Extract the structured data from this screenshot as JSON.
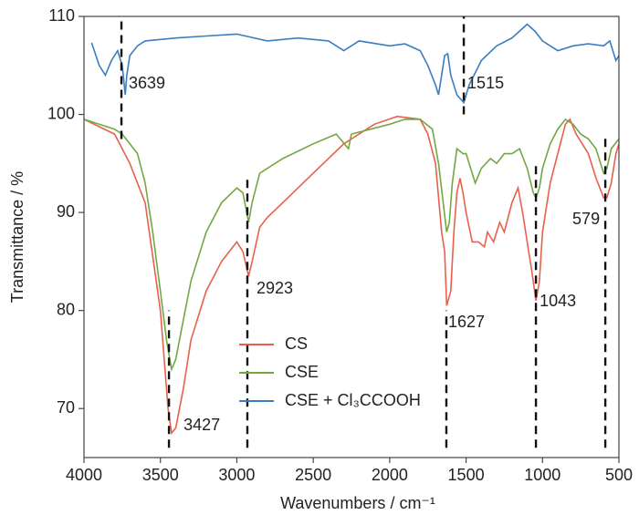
{
  "chart_data": {
    "type": "line",
    "xlabel": "Wavenumbers / cm⁻¹",
    "ylabel": "Transmittance / %",
    "xlim": [
      4000,
      500
    ],
    "ylim": [
      65,
      110
    ],
    "xticks": [
      4000,
      3500,
      3000,
      2500,
      2000,
      1500,
      1000,
      500
    ],
    "yticks": [
      70,
      80,
      90,
      100,
      110
    ],
    "series": [
      {
        "name": "CS",
        "color": "#e8604c",
        "x": [
          4000,
          3800,
          3700,
          3600,
          3500,
          3450,
          3427,
          3400,
          3350,
          3300,
          3200,
          3100,
          3000,
          2960,
          2923,
          2900,
          2850,
          2800,
          2700,
          2500,
          2300,
          2100,
          1950,
          1800,
          1750,
          1700,
          1660,
          1640,
          1627,
          1600,
          1580,
          1560,
          1540,
          1520,
          1500,
          1460,
          1420,
          1380,
          1360,
          1320,
          1280,
          1250,
          1200,
          1160,
          1130,
          1100,
          1070,
          1043,
          1020,
          1000,
          950,
          900,
          850,
          820,
          780,
          740,
          700,
          650,
          600,
          579,
          550,
          520,
          500
        ],
        "values": [
          99.5,
          98,
          95,
          91,
          80,
          70,
          67.5,
          68,
          72,
          77,
          82,
          85,
          87,
          86,
          83.5,
          85,
          88.5,
          89.5,
          91,
          94,
          97,
          99,
          99.8,
          99.5,
          98,
          95,
          88,
          86,
          80.5,
          82,
          88,
          92,
          93.5,
          92,
          90,
          87,
          87,
          86.5,
          88,
          87,
          89,
          88,
          91,
          92.5,
          90,
          87,
          84,
          81,
          83,
          88,
          93,
          96,
          99,
          99.5,
          98,
          97,
          96,
          93.5,
          91.5,
          91.5,
          93,
          96,
          97
        ]
      },
      {
        "name": "CSE",
        "color": "#72a843",
        "x": [
          4000,
          3800,
          3750,
          3700,
          3650,
          3600,
          3550,
          3500,
          3460,
          3427,
          3400,
          3350,
          3300,
          3200,
          3100,
          3000,
          2960,
          2923,
          2900,
          2850,
          2700,
          2500,
          2350,
          2270,
          2250,
          2000,
          1900,
          1800,
          1720,
          1680,
          1650,
          1627,
          1610,
          1590,
          1560,
          1520,
          1500,
          1440,
          1400,
          1340,
          1300,
          1250,
          1200,
          1150,
          1100,
          1060,
          1043,
          1020,
          1000,
          950,
          900,
          850,
          800,
          750,
          700,
          650,
          600,
          579,
          550,
          500
        ],
        "values": [
          99.5,
          98.5,
          98,
          97,
          96,
          93,
          88,
          82,
          77,
          74,
          75,
          79,
          83,
          88,
          91,
          92.5,
          92,
          89,
          91,
          94,
          95.5,
          97,
          98,
          96.5,
          98,
          99,
          99.5,
          99.5,
          98.5,
          95,
          91,
          88,
          89,
          93,
          96.5,
          96,
          96,
          93,
          94.5,
          95.5,
          95,
          96,
          96,
          96.5,
          94.5,
          92,
          91.5,
          92.5,
          94.5,
          97,
          98.5,
          99.5,
          99,
          98,
          97.5,
          96.5,
          94,
          94.5,
          96.5,
          97.5
        ]
      },
      {
        "name": "CSE + Cl₃CCOOH",
        "color": "#3b7dc0",
        "x": [
          3950,
          3900,
          3860,
          3820,
          3780,
          3750,
          3730,
          3720,
          3700,
          3650,
          3600,
          3400,
          3200,
          3000,
          2800,
          2600,
          2400,
          2300,
          2200,
          2000,
          1900,
          1800,
          1750,
          1700,
          1680,
          1660,
          1640,
          1620,
          1600,
          1560,
          1515,
          1480,
          1400,
          1300,
          1200,
          1100,
          1050,
          1000,
          900,
          800,
          700,
          600,
          560,
          520,
          500
        ],
        "values": [
          107.3,
          105,
          104,
          105.5,
          106.5,
          105,
          102,
          104,
          106,
          107,
          107.5,
          107.8,
          108,
          108.2,
          107.5,
          107.8,
          107.5,
          106.5,
          107.5,
          107,
          107.2,
          106.5,
          105,
          103,
          102,
          104,
          106,
          106.2,
          104,
          102,
          101.2,
          103,
          105.5,
          107,
          107.8,
          109.2,
          108.5,
          107.5,
          106.5,
          107,
          107.2,
          107,
          107.5,
          105.5,
          106
        ]
      }
    ],
    "annotations": [
      {
        "text": "3639",
        "x": 3755,
        "y_range": [
          97.5,
          110
        ]
      },
      {
        "text": "1515",
        "x": 1515,
        "y_range": [
          100,
          110
        ]
      },
      {
        "text": "3427",
        "x": 3444,
        "y_range": [
          66,
          80
        ]
      },
      {
        "text": "2923",
        "x": 2931,
        "y_range": [
          66,
          93.8
        ]
      },
      {
        "text": "1627",
        "x": 1629,
        "y_range": [
          66,
          80
        ]
      },
      {
        "text": "1043",
        "x": 1043,
        "y_range": [
          66,
          94.9
        ]
      },
      {
        "text": "579",
        "x": 589,
        "y_range": [
          66,
          97.7
        ]
      }
    ]
  }
}
